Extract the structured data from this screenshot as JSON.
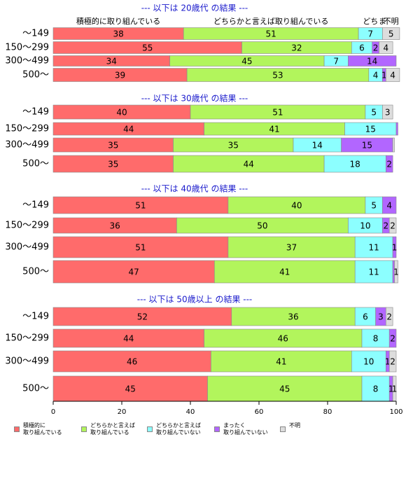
{
  "chart_data": {
    "type": "stacked-barh",
    "series": [
      {
        "name": "積極的に\n取り組んでいる",
        "color": "#ff6b6b"
      },
      {
        "name": "どちらかと言えば\n取り組んでいる",
        "color": "#b2f55c"
      },
      {
        "name": "どちらかと言えば\n取り組んでいない",
        "color": "#8cffff"
      },
      {
        "name": "まったく\n取り組んでいない",
        "color": "#b266ff"
      },
      {
        "name": "不明",
        "color": "#dddddd"
      }
    ],
    "column_headers": [
      "積極的に取り組んでいる",
      "どちらかと言えば取り組んでいる",
      "どち",
      "ま",
      "不明"
    ],
    "groups": [
      {
        "title": "--- 以下は 20歳代 の結果 ---",
        "categories": [
          "～149",
          "150～299",
          "300～499",
          "500～"
        ],
        "values": [
          [
            38,
            51,
            7,
            0,
            5
          ],
          [
            55,
            32,
            6,
            2,
            4
          ],
          [
            34,
            45,
            7,
            14,
            0
          ],
          [
            39,
            53,
            4,
            1,
            4
          ]
        ]
      },
      {
        "title": "--- 以下は 30歳代 の結果 ---",
        "categories": [
          "～149",
          "150～299",
          "300～499",
          "500～"
        ],
        "values": [
          [
            40,
            51,
            5,
            0,
            3
          ],
          [
            44,
            41,
            15,
            0.5,
            0
          ],
          [
            35,
            35,
            14,
            15,
            0.5
          ],
          [
            35,
            44,
            18,
            2,
            0
          ]
        ]
      },
      {
        "title": "--- 以下は 40歳代 の結果 ---",
        "categories": [
          "～149",
          "150～299",
          "300～499",
          "500～"
        ],
        "values": [
          [
            51,
            40,
            5,
            4,
            0
          ],
          [
            36,
            50,
            10,
            2,
            2
          ],
          [
            51,
            37,
            11,
            1,
            0
          ],
          [
            47,
            41,
            11,
            0.5,
            1
          ]
        ]
      },
      {
        "title": "--- 以下は 50歳以上 の結果 ---",
        "categories": [
          "～149",
          "150～299",
          "300～499",
          "500～"
        ],
        "values": [
          [
            52,
            36,
            6,
            3,
            2
          ],
          [
            44,
            46,
            8,
            2,
            0
          ],
          [
            46,
            41,
            10,
            1,
            2
          ],
          [
            45,
            45,
            8,
            1,
            1
          ]
        ]
      }
    ],
    "xlim": [
      0,
      100
    ],
    "xticks": [
      0,
      20,
      40,
      60,
      80,
      100
    ]
  }
}
